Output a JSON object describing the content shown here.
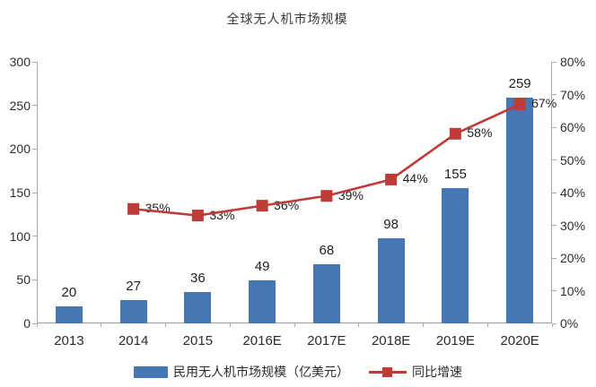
{
  "title": "全球无人机市场规模",
  "legend": {
    "bar_label": "民用无人机市场规模（亿美元）",
    "line_label": "同比增速"
  },
  "colors": {
    "bar": "#4577B3",
    "line": "#BE3B38",
    "axis": "#A5ABB2",
    "label_text": "#1F1F1F"
  },
  "chart_data": {
    "type": "bar",
    "title": "全球无人机市场规模",
    "subtitle": "",
    "categories": [
      "2013",
      "2014",
      "2015",
      "2016E",
      "2017E",
      "2018E",
      "2019E",
      "2020E"
    ],
    "series": [
      {
        "name": "民用无人机市场规模（亿美元）",
        "type": "bar",
        "axis": "left",
        "color": "#4577B3",
        "values": [
          20,
          27,
          36,
          49,
          68,
          98,
          155,
          259
        ],
        "data_labels": [
          "20",
          "27",
          "36",
          "49",
          "68",
          "98",
          "155",
          "259"
        ]
      },
      {
        "name": "同比增速",
        "type": "line",
        "axis": "right",
        "color": "#BE3B38",
        "values": [
          null,
          35,
          33,
          36,
          39,
          44,
          58,
          67
        ],
        "data_labels": [
          "",
          "35%",
          "33%",
          "36%",
          "39%",
          "44%",
          "58%",
          "67%"
        ]
      }
    ],
    "left_axis": {
      "min": 0,
      "max": 300,
      "step": 50,
      "tick_labels": [
        "0",
        "50",
        "100",
        "150",
        "200",
        "250",
        "300"
      ]
    },
    "right_axis": {
      "min": 0,
      "max": 80,
      "step": 10,
      "tick_labels": [
        "0%",
        "10%",
        "20%",
        "30%",
        "40%",
        "50%",
        "60%",
        "70%",
        "80%"
      ]
    },
    "grid": false,
    "legend_position": "bottom"
  }
}
